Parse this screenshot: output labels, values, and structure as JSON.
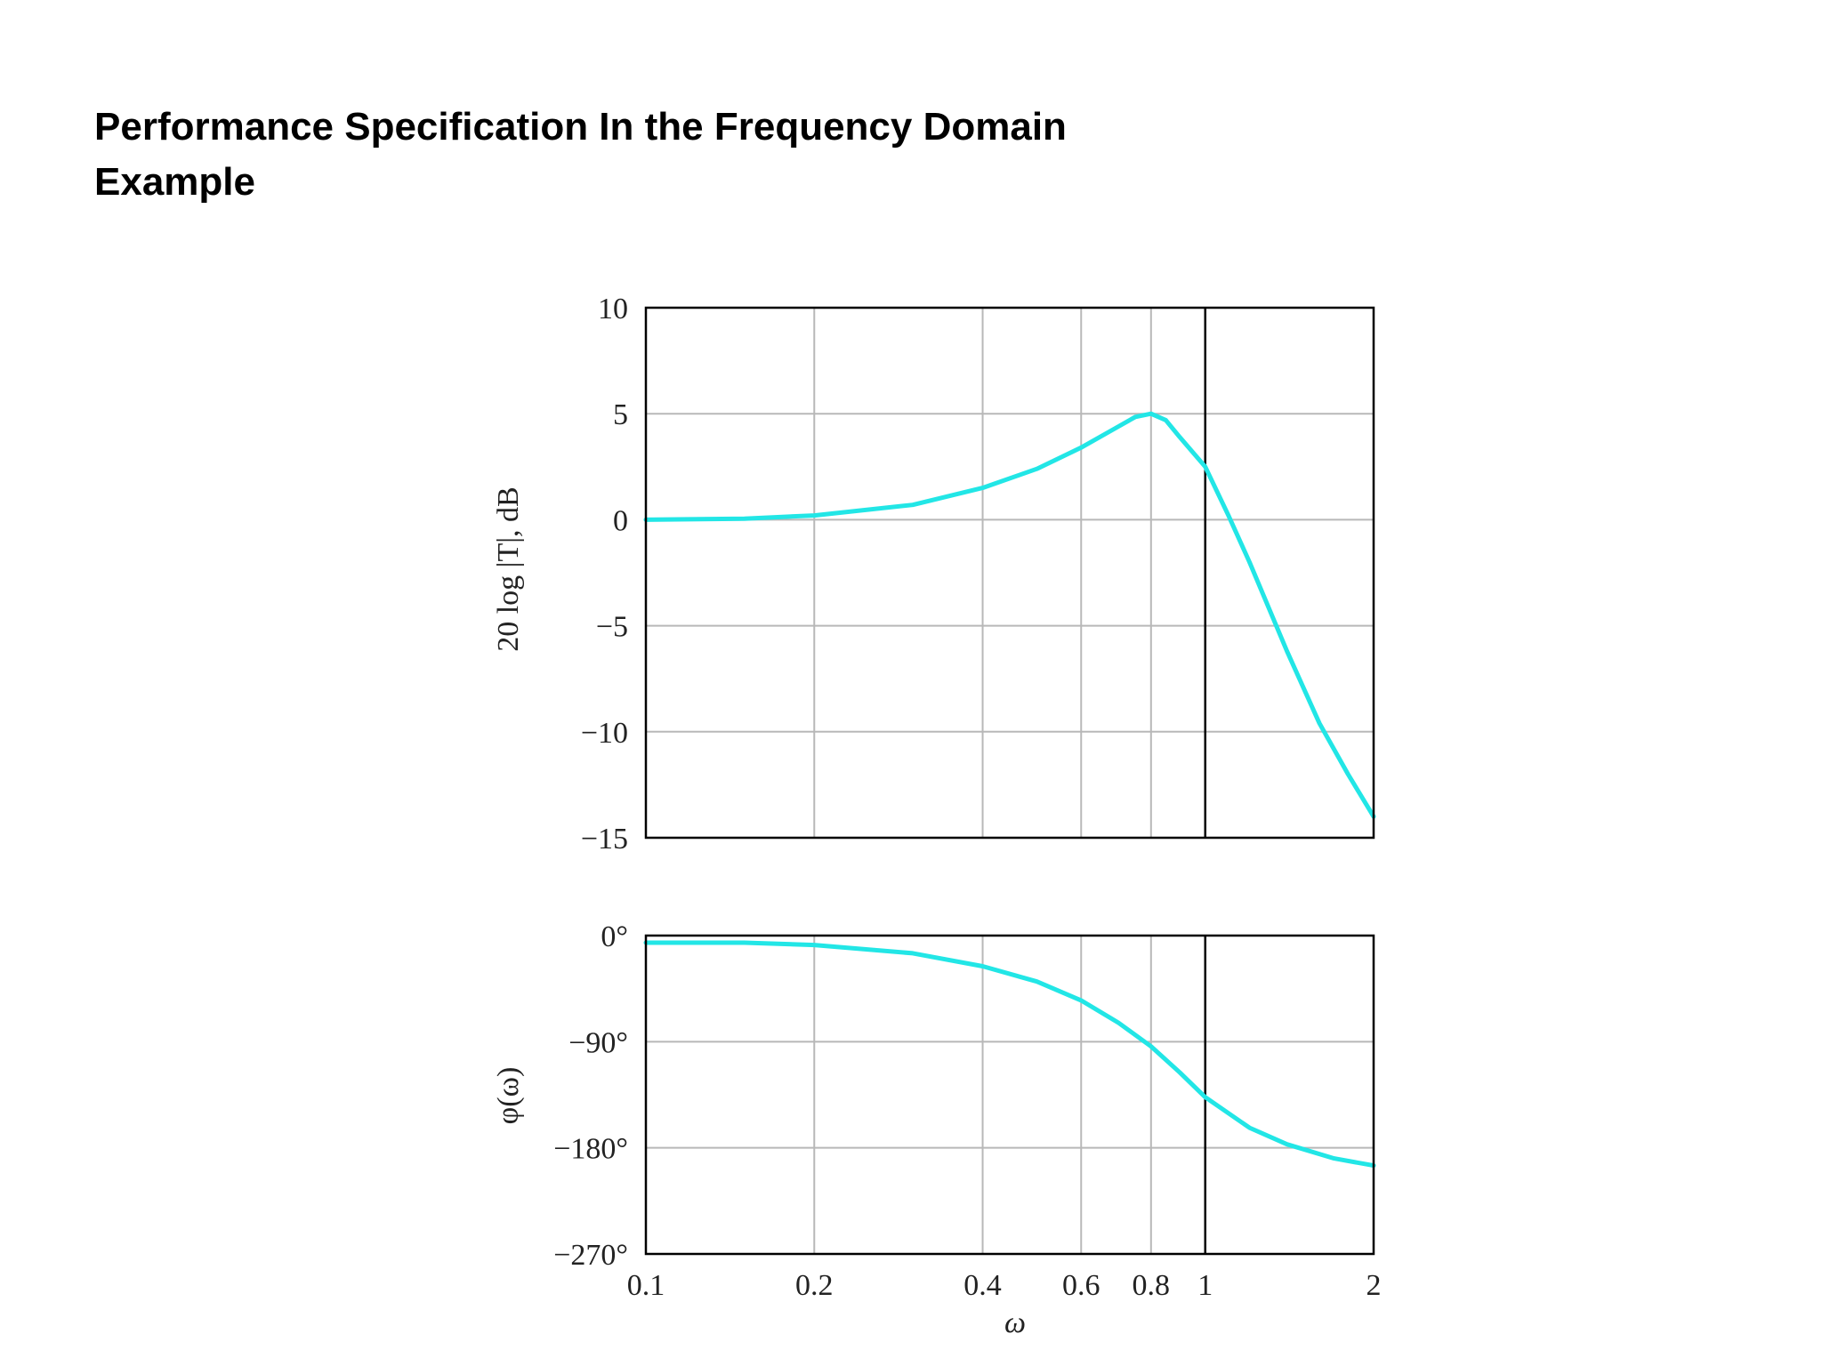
{
  "title": {
    "line1": "Performance Specification In the Frequency Domain",
    "line2": "Example"
  },
  "colors": {
    "curve": "#22e6e6",
    "grid": "#b8b8b8",
    "frame": "#000000"
  },
  "chart_data": [
    {
      "type": "line",
      "scale_x": "log",
      "xlim": [
        0.1,
        2
      ],
      "ylim": [
        -15,
        10
      ],
      "ylabel": "20 log |T|, dB",
      "xticks": [
        0.1,
        0.2,
        0.4,
        0.6,
        0.8,
        1,
        2
      ],
      "yticks": [
        10,
        5,
        0,
        -5,
        -10,
        -15
      ],
      "ytick_labels": [
        "10",
        "5",
        "0",
        "−5",
        "−10",
        "−15"
      ],
      "grid": true,
      "marker_line_x": 1,
      "series": [
        {
          "x": [
            0.1,
            0.15,
            0.2,
            0.3,
            0.4,
            0.5,
            0.6,
            0.7,
            0.75,
            0.8,
            0.85,
            0.9,
            1.0,
            1.1,
            1.2,
            1.4,
            1.6,
            1.8,
            2.0
          ],
          "values": [
            0,
            0.05,
            0.2,
            0.7,
            1.5,
            2.4,
            3.4,
            4.4,
            4.85,
            5.0,
            4.7,
            3.9,
            2.5,
            0.2,
            -2.0,
            -6.2,
            -9.6,
            -12.0,
            -14.0
          ]
        }
      ]
    },
    {
      "type": "line",
      "scale_x": "log",
      "xlim": [
        0.1,
        2
      ],
      "ylim": [
        -270,
        0
      ],
      "ylabel": "φ(ω)",
      "xlabel": "ω",
      "xticks": [
        0.1,
        0.2,
        0.4,
        0.6,
        0.8,
        1,
        2
      ],
      "xtick_labels": [
        "0.1",
        "0.2",
        "0.4",
        "0.6",
        "0.8",
        "1",
        "2"
      ],
      "yticks": [
        0,
        -90,
        -180,
        -270
      ],
      "ytick_labels": [
        "0°",
        "−90°",
        "−180°",
        "−270°"
      ],
      "grid": true,
      "marker_line_x": 1,
      "series": [
        {
          "x": [
            0.1,
            0.15,
            0.2,
            0.3,
            0.4,
            0.5,
            0.6,
            0.7,
            0.8,
            0.9,
            1.0,
            1.2,
            1.4,
            1.7,
            2.0
          ],
          "values": [
            -6,
            -6,
            -8,
            -15,
            -26,
            -39,
            -55,
            -74,
            -94,
            -116,
            -137,
            -163,
            -177,
            -189,
            -195
          ]
        }
      ]
    }
  ]
}
